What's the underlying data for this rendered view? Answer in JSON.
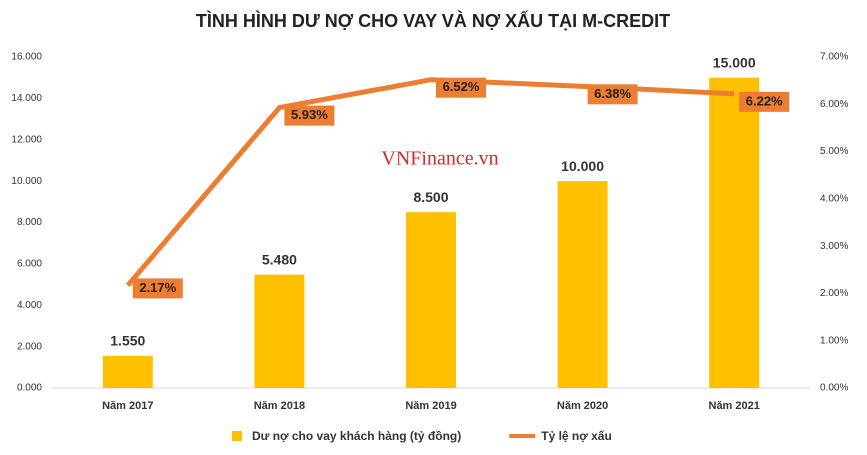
{
  "chart_data": {
    "type": "bar",
    "title": "TÌNH HÌNH DƯ NỢ CHO VAY VÀ NỢ XẤU TẠI M-CREDIT",
    "annotation": "VNFinance.vn",
    "categories": [
      "Năm 2017",
      "Năm 2018",
      "Năm 2019",
      "Năm 2020",
      "Năm 2021"
    ],
    "series": [
      {
        "name": "Dư nợ cho vay khách hàng (tỷ đồng)",
        "type": "bar",
        "color": "#FFC000",
        "values": [
          1550,
          5480,
          8500,
          10000,
          15000
        ],
        "value_labels": [
          "1.550",
          "5.480",
          "8.500",
          "10.000",
          "15.000"
        ]
      },
      {
        "name": "Tỷ lệ nợ xấu",
        "type": "line",
        "axis": "y2",
        "color": "#ED7D31",
        "values": [
          2.17,
          5.93,
          6.52,
          6.38,
          6.22
        ],
        "value_labels": [
          "2.17%",
          "5.93%",
          "6.52%",
          "6.38%",
          "6.22%"
        ]
      }
    ],
    "ylim": [
      0,
      16000
    ],
    "yticks": [
      {
        "value": 0,
        "label": "0.000"
      },
      {
        "value": 2000,
        "label": "2.000"
      },
      {
        "value": 4000,
        "label": "4.000"
      },
      {
        "value": 6000,
        "label": "6.000"
      },
      {
        "value": 8000,
        "label": "8.000"
      },
      {
        "value": 10000,
        "label": "10.000"
      },
      {
        "value": 12000,
        "label": "12.000"
      },
      {
        "value": 14000,
        "label": "14.000"
      },
      {
        "value": 16000,
        "label": "16.000"
      }
    ],
    "y2lim": [
      0,
      7
    ],
    "y2ticks": [
      {
        "value": 0,
        "label": "0.00%"
      },
      {
        "value": 1,
        "label": "1.00%"
      },
      {
        "value": 2,
        "label": "2.00%"
      },
      {
        "value": 3,
        "label": "3.00%"
      },
      {
        "value": 4,
        "label": "4.00%"
      },
      {
        "value": 5,
        "label": "5.00%"
      },
      {
        "value": 6,
        "label": "6.00%"
      },
      {
        "value": 7,
        "label": "7.00%"
      }
    ],
    "legend": "bottom"
  }
}
